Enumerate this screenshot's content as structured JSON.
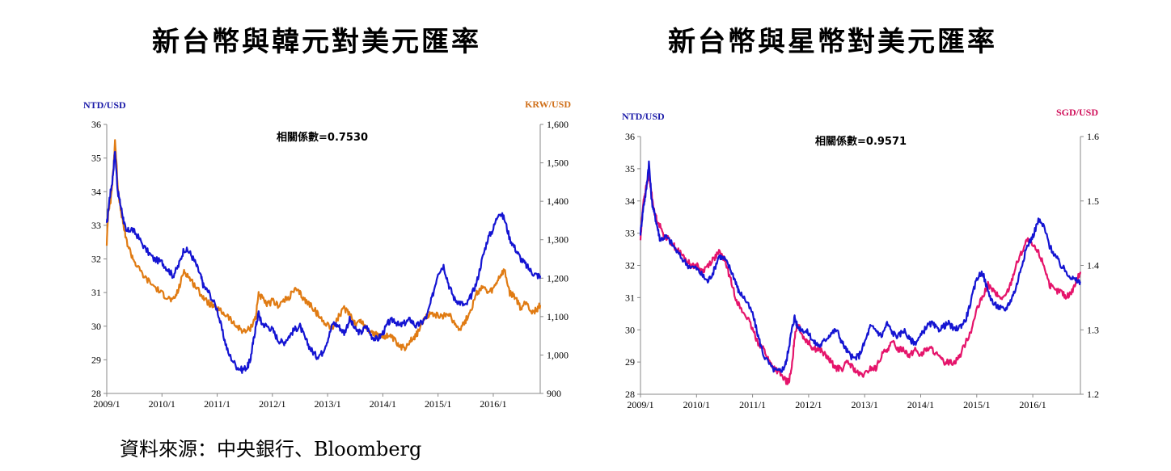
{
  "source_text": "資料來源：中央銀行、Bloomberg",
  "colors": {
    "ntd": "#1414d2",
    "krw": "#e07b13",
    "sgd": "#e5146b",
    "axis_left_label": "#1a1aa8",
    "krw_label": "#d0701a",
    "sgd_label": "#d0105a"
  },
  "chart_data": [
    {
      "type": "line",
      "title": "新台幣與韓元對美元匯率",
      "correlation_label": "相關係數=0.7530",
      "left_axis": {
        "label": "NTD/USD",
        "min": 28,
        "max": 36,
        "ticks": [
          "28",
          "29",
          "30",
          "31",
          "32",
          "33",
          "34",
          "35",
          "36"
        ],
        "tick_values": [
          28,
          29,
          30,
          31,
          32,
          33,
          34,
          35,
          36
        ]
      },
      "right_axis": {
        "label": "KRW/USD",
        "min": 900,
        "max": 1600,
        "ticks": [
          "900",
          "1,000",
          "1,100",
          "1,200",
          "1,300",
          "1,400",
          "1,500",
          "1,600"
        ],
        "tick_values": [
          900,
          1000,
          1100,
          1200,
          1300,
          1400,
          1500,
          1600
        ]
      },
      "x_ticks": [
        "2009/1",
        "2010/1",
        "2011/1",
        "2012/1",
        "2013/1",
        "2014/1",
        "2015/1",
        "2016/1"
      ],
      "x_range": [
        2009.0,
        2016.85
      ],
      "series": [
        {
          "name": "NTD/USD",
          "axis": "left",
          "x": [
            2009.0,
            2009.05,
            2009.1,
            2009.15,
            2009.2,
            2009.25,
            2009.3,
            2009.35,
            2009.45,
            2009.55,
            2009.7,
            2009.85,
            2010.0,
            2010.1,
            2010.2,
            2010.3,
            2010.4,
            2010.5,
            2010.6,
            2010.7,
            2010.75,
            2010.85,
            2011.0,
            2011.1,
            2011.2,
            2011.35,
            2011.45,
            2011.55,
            2011.6,
            2011.65,
            2011.7,
            2011.75,
            2011.8,
            2011.9,
            2012.0,
            2012.1,
            2012.2,
            2012.3,
            2012.4,
            2012.5,
            2012.6,
            2012.7,
            2012.8,
            2012.9,
            2013.0,
            2013.1,
            2013.2,
            2013.3,
            2013.4,
            2013.5,
            2013.6,
            2013.7,
            2013.8,
            2013.9,
            2014.0,
            2014.1,
            2014.2,
            2014.3,
            2014.4,
            2014.5,
            2014.6,
            2014.7,
            2014.8,
            2014.9,
            2015.0,
            2015.1,
            2015.2,
            2015.3,
            2015.4,
            2015.5,
            2015.6,
            2015.7,
            2015.8,
            2015.9,
            2016.0,
            2016.1,
            2016.2,
            2016.3,
            2016.4,
            2016.5,
            2016.6,
            2016.7,
            2016.8,
            2016.85
          ],
          "y": [
            33.0,
            33.8,
            34.3,
            35.2,
            34.0,
            33.6,
            33.2,
            32.8,
            32.9,
            32.7,
            32.3,
            32.0,
            31.9,
            31.7,
            31.5,
            31.8,
            32.3,
            32.2,
            31.9,
            31.5,
            31.2,
            31.0,
            30.5,
            29.8,
            29.2,
            28.8,
            28.7,
            28.8,
            29.0,
            29.5,
            30.0,
            30.4,
            30.1,
            30.0,
            29.9,
            29.6,
            29.5,
            29.7,
            29.9,
            30.0,
            29.6,
            29.3,
            29.1,
            29.2,
            29.6,
            30.1,
            30.0,
            29.8,
            30.2,
            29.9,
            29.8,
            30.0,
            29.7,
            29.6,
            29.8,
            30.1,
            30.2,
            30.0,
            30.1,
            30.2,
            30.0,
            30.1,
            30.3,
            30.9,
            31.6,
            31.8,
            31.2,
            30.8,
            30.7,
            30.6,
            30.9,
            31.3,
            32.0,
            32.6,
            32.9,
            33.4,
            33.2,
            32.6,
            32.3,
            32.0,
            31.8,
            31.6,
            31.5,
            31.5
          ]
        },
        {
          "name": "KRW/USD",
          "axis": "right",
          "x": [
            2009.0,
            2009.03,
            2009.07,
            2009.12,
            2009.15,
            2009.2,
            2009.25,
            2009.3,
            2009.35,
            2009.45,
            2009.55,
            2009.7,
            2009.85,
            2010.0,
            2010.1,
            2010.2,
            2010.3,
            2010.4,
            2010.5,
            2010.6,
            2010.7,
            2010.8,
            2010.9,
            2011.0,
            2011.1,
            2011.2,
            2011.3,
            2011.4,
            2011.5,
            2011.6,
            2011.7,
            2011.75,
            2011.8,
            2011.9,
            2012.0,
            2012.1,
            2012.2,
            2012.3,
            2012.4,
            2012.5,
            2012.6,
            2012.7,
            2012.8,
            2012.9,
            2013.0,
            2013.1,
            2013.2,
            2013.3,
            2013.4,
            2013.5,
            2013.6,
            2013.7,
            2013.8,
            2013.9,
            2014.0,
            2014.1,
            2014.2,
            2014.3,
            2014.4,
            2014.5,
            2014.6,
            2014.7,
            2014.8,
            2014.9,
            2015.0,
            2015.1,
            2015.2,
            2015.3,
            2015.4,
            2015.5,
            2015.6,
            2015.7,
            2015.8,
            2015.9,
            2016.0,
            2016.1,
            2016.2,
            2016.3,
            2016.4,
            2016.5,
            2016.6,
            2016.7,
            2016.8,
            2016.85
          ],
          "y": [
            1290,
            1380,
            1400,
            1480,
            1560,
            1440,
            1380,
            1340,
            1300,
            1260,
            1230,
            1200,
            1180,
            1160,
            1150,
            1140,
            1170,
            1220,
            1200,
            1180,
            1160,
            1140,
            1130,
            1120,
            1110,
            1100,
            1080,
            1070,
            1060,
            1070,
            1100,
            1160,
            1150,
            1130,
            1140,
            1130,
            1140,
            1150,
            1170,
            1160,
            1140,
            1130,
            1110,
            1090,
            1080,
            1070,
            1100,
            1120,
            1110,
            1080,
            1090,
            1070,
            1060,
            1050,
            1050,
            1050,
            1040,
            1020,
            1020,
            1040,
            1050,
            1080,
            1100,
            1110,
            1100,
            1100,
            1110,
            1080,
            1070,
            1090,
            1120,
            1160,
            1180,
            1160,
            1170,
            1200,
            1220,
            1160,
            1150,
            1120,
            1140,
            1110,
            1120,
            1130
          ]
        }
      ]
    },
    {
      "type": "line",
      "title": "新台幣與星幣對美元匯率",
      "correlation_label": "相關係數=0.9571",
      "left_axis": {
        "label": "NTD/USD",
        "min": 28,
        "max": 36,
        "ticks": [
          "28",
          "29",
          "30",
          "31",
          "32",
          "33",
          "34",
          "35",
          "36"
        ],
        "tick_values": [
          28,
          29,
          30,
          31,
          32,
          33,
          34,
          35,
          36
        ]
      },
      "right_axis": {
        "label": "SGD/USD",
        "min": 1.2,
        "max": 1.6,
        "ticks": [
          "1.2",
          "1.3",
          "1.4",
          "1.5",
          "1.6"
        ],
        "tick_values": [
          1.2,
          1.3,
          1.4,
          1.5,
          1.6
        ]
      },
      "x_ticks": [
        "2009/1",
        "2010/1",
        "2011/1",
        "2012/1",
        "2013/1",
        "2014/1",
        "2015/1",
        "2016/1"
      ],
      "x_range": [
        2009.0,
        2016.85
      ],
      "series": [
        {
          "name": "NTD/USD",
          "axis": "left",
          "x": [
            2009.0,
            2009.05,
            2009.1,
            2009.15,
            2009.2,
            2009.25,
            2009.3,
            2009.35,
            2009.45,
            2009.55,
            2009.7,
            2009.85,
            2010.0,
            2010.1,
            2010.2,
            2010.3,
            2010.4,
            2010.5,
            2010.6,
            2010.7,
            2010.75,
            2010.85,
            2011.0,
            2011.1,
            2011.2,
            2011.35,
            2011.45,
            2011.55,
            2011.6,
            2011.65,
            2011.7,
            2011.75,
            2011.8,
            2011.9,
            2012.0,
            2012.1,
            2012.2,
            2012.3,
            2012.4,
            2012.5,
            2012.6,
            2012.7,
            2012.8,
            2012.9,
            2013.0,
            2013.1,
            2013.2,
            2013.3,
            2013.4,
            2013.5,
            2013.6,
            2013.7,
            2013.8,
            2013.9,
            2014.0,
            2014.1,
            2014.2,
            2014.3,
            2014.4,
            2014.5,
            2014.6,
            2014.7,
            2014.8,
            2014.9,
            2015.0,
            2015.1,
            2015.2,
            2015.3,
            2015.4,
            2015.5,
            2015.6,
            2015.7,
            2015.8,
            2015.9,
            2016.0,
            2016.1,
            2016.2,
            2016.3,
            2016.4,
            2016.5,
            2016.6,
            2016.7,
            2016.8,
            2016.85
          ],
          "y": [
            33.0,
            33.8,
            34.3,
            35.2,
            34.0,
            33.6,
            33.2,
            32.8,
            32.9,
            32.7,
            32.3,
            32.0,
            31.9,
            31.7,
            31.5,
            31.8,
            32.3,
            32.2,
            31.9,
            31.5,
            31.2,
            31.0,
            30.5,
            29.8,
            29.2,
            28.8,
            28.7,
            28.8,
            29.0,
            29.5,
            30.0,
            30.4,
            30.1,
            30.0,
            29.9,
            29.6,
            29.5,
            29.7,
            29.9,
            30.0,
            29.6,
            29.3,
            29.1,
            29.2,
            29.6,
            30.1,
            30.0,
            29.8,
            30.2,
            29.9,
            29.8,
            30.0,
            29.7,
            29.6,
            29.8,
            30.1,
            30.2,
            30.0,
            30.1,
            30.2,
            30.0,
            30.1,
            30.3,
            30.9,
            31.6,
            31.8,
            31.2,
            30.8,
            30.7,
            30.6,
            30.9,
            31.3,
            32.0,
            32.6,
            32.9,
            33.4,
            33.2,
            32.6,
            32.3,
            32.0,
            31.8,
            31.6,
            31.5,
            31.5
          ]
        },
        {
          "name": "SGD/USD",
          "axis": "right",
          "x": [
            2009.0,
            2009.05,
            2009.1,
            2009.15,
            2009.2,
            2009.25,
            2009.3,
            2009.4,
            2009.5,
            2009.6,
            2009.7,
            2009.8,
            2009.9,
            2010.0,
            2010.1,
            2010.2,
            2010.3,
            2010.4,
            2010.5,
            2010.6,
            2010.7,
            2010.8,
            2010.9,
            2011.0,
            2011.1,
            2011.2,
            2011.3,
            2011.4,
            2011.5,
            2011.6,
            2011.65,
            2011.7,
            2011.75,
            2011.8,
            2011.9,
            2012.0,
            2012.1,
            2012.2,
            2012.3,
            2012.4,
            2012.5,
            2012.6,
            2012.7,
            2012.8,
            2012.9,
            2013.0,
            2013.1,
            2013.2,
            2013.3,
            2013.4,
            2013.5,
            2013.6,
            2013.7,
            2013.8,
            2013.9,
            2014.0,
            2014.1,
            2014.2,
            2014.3,
            2014.4,
            2014.5,
            2014.6,
            2014.7,
            2014.8,
            2014.9,
            2015.0,
            2015.1,
            2015.2,
            2015.3,
            2015.4,
            2015.5,
            2015.6,
            2015.7,
            2015.8,
            2015.9,
            2016.0,
            2016.1,
            2016.2,
            2016.3,
            2016.4,
            2016.5,
            2016.6,
            2016.7,
            2016.8,
            2016.85
          ],
          "y": [
            1.44,
            1.5,
            1.52,
            1.54,
            1.51,
            1.48,
            1.47,
            1.45,
            1.44,
            1.43,
            1.42,
            1.41,
            1.4,
            1.4,
            1.39,
            1.4,
            1.41,
            1.42,
            1.41,
            1.38,
            1.35,
            1.33,
            1.32,
            1.3,
            1.28,
            1.27,
            1.25,
            1.24,
            1.23,
            1.22,
            1.22,
            1.24,
            1.29,
            1.31,
            1.29,
            1.28,
            1.27,
            1.27,
            1.26,
            1.25,
            1.24,
            1.24,
            1.25,
            1.24,
            1.23,
            1.23,
            1.24,
            1.24,
            1.26,
            1.27,
            1.28,
            1.27,
            1.27,
            1.26,
            1.27,
            1.26,
            1.27,
            1.27,
            1.26,
            1.25,
            1.25,
            1.25,
            1.26,
            1.28,
            1.3,
            1.33,
            1.35,
            1.37,
            1.36,
            1.35,
            1.35,
            1.37,
            1.4,
            1.42,
            1.44,
            1.43,
            1.42,
            1.4,
            1.37,
            1.36,
            1.36,
            1.35,
            1.36,
            1.38,
            1.39
          ]
        }
      ]
    }
  ]
}
